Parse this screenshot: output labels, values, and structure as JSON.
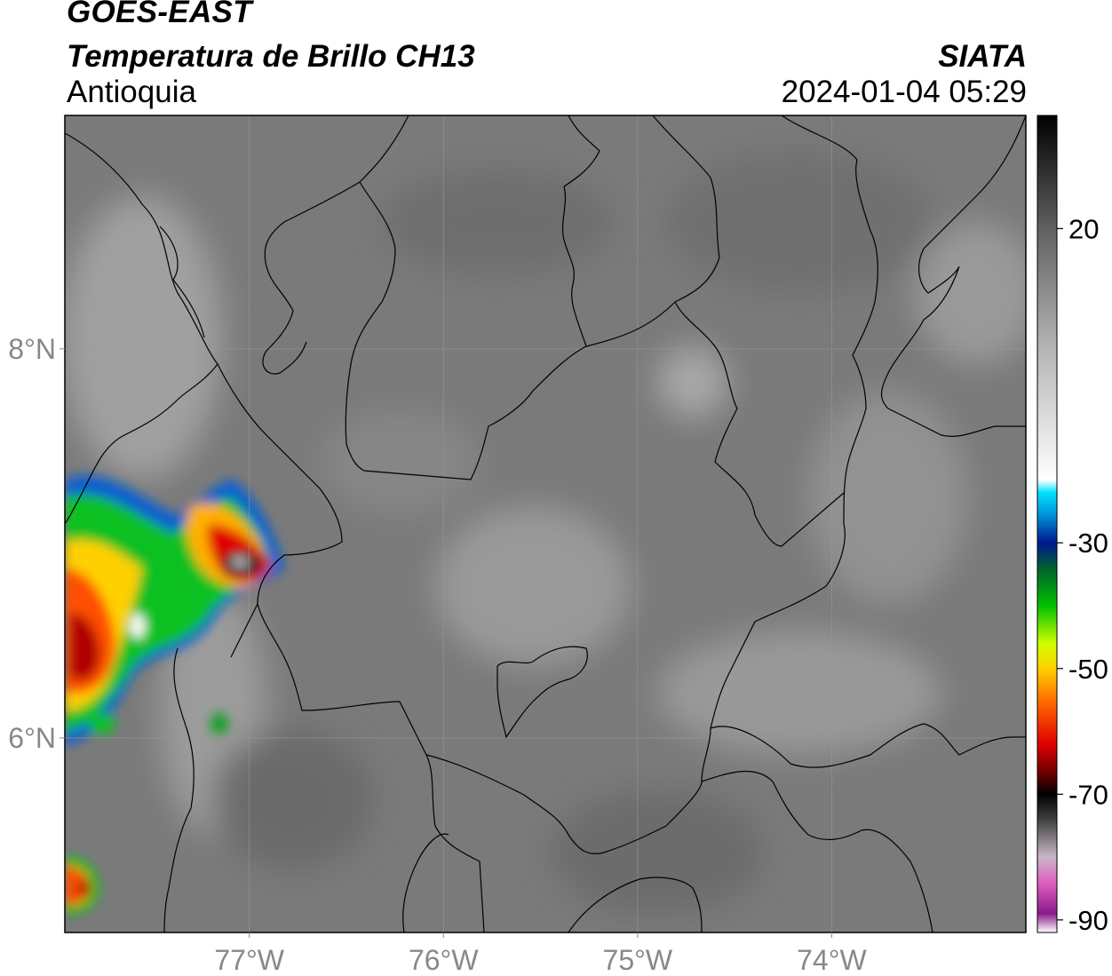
{
  "header": {
    "satellite": "GOES-EAST",
    "product": "Temperatura de Brillo CH13",
    "region": "Antioquia",
    "organization": "SIATA",
    "datetime": "2024-01-04 05:29"
  },
  "map": {
    "lon_range": [
      -77.95,
      -73.0
    ],
    "lat_range": [
      5.0,
      9.2
    ],
    "lon_ticks": [
      {
        "value": -77,
        "label": "77°W"
      },
      {
        "value": -76,
        "label": "76°W"
      },
      {
        "value": -75,
        "label": "75°W"
      },
      {
        "value": -74,
        "label": "74°W"
      }
    ],
    "lat_ticks": [
      {
        "value": 8,
        "label": "8°N"
      },
      {
        "value": 6,
        "label": "6°N"
      }
    ],
    "gridlines": true,
    "colors": {
      "background_gray": "#7c7c7c",
      "border_line": "#000000",
      "gridline": "#999999"
    }
  },
  "colorbar": {
    "label_ticks": [
      {
        "value": 20,
        "label": "20"
      },
      {
        "value": -30,
        "label": "-30"
      },
      {
        "value": -50,
        "label": "-50"
      },
      {
        "value": -70,
        "label": "-70"
      },
      {
        "value": -90,
        "label": "-90"
      }
    ],
    "range": [
      -92,
      38
    ],
    "stops": [
      {
        "value": -92,
        "color": "#ffffff"
      },
      {
        "value": -89,
        "color": "#8a1a8a"
      },
      {
        "value": -84,
        "color": "#e060c0"
      },
      {
        "value": -80,
        "color": "#c8b8c8"
      },
      {
        "value": -74,
        "color": "#404040"
      },
      {
        "value": -70,
        "color": "#000000"
      },
      {
        "value": -67,
        "color": "#600000"
      },
      {
        "value": -62,
        "color": "#e00000"
      },
      {
        "value": -55,
        "color": "#ff7000"
      },
      {
        "value": -50,
        "color": "#ffd000"
      },
      {
        "value": -46,
        "color": "#d0ff00"
      },
      {
        "value": -40,
        "color": "#00c000"
      },
      {
        "value": -34,
        "color": "#006030"
      },
      {
        "value": -30,
        "color": "#001890"
      },
      {
        "value": -25,
        "color": "#00a0e0"
      },
      {
        "value": -22,
        "color": "#00e0ff"
      },
      {
        "value": -20,
        "color": "#ffffff"
      },
      {
        "value": 0,
        "color": "#b8b8b8"
      },
      {
        "value": 20,
        "color": "#606060"
      },
      {
        "value": 38,
        "color": "#000000"
      }
    ]
  }
}
